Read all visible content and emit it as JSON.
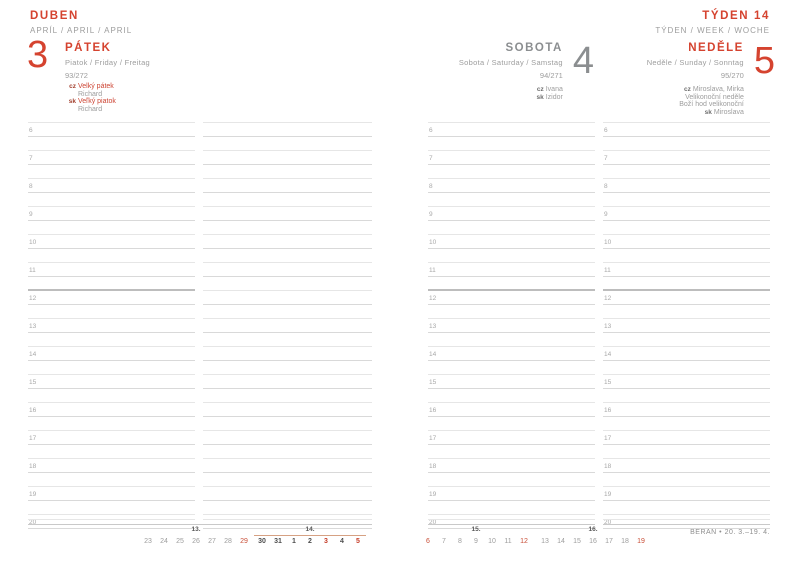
{
  "header": {
    "month": "DUBEN",
    "month_languages": "APRÍL / APRIL / APRIL",
    "week": "TÝDEN 14",
    "week_languages": "TÝDEN / WEEK / WOCHE"
  },
  "days": [
    {
      "number": "3",
      "name": "PÁTEK",
      "languages": "Piatok / Friday / Freitag",
      "day_of_year": "93/272",
      "entries": [
        {
          "prefix": "cz",
          "text": "Velký pátek",
          "type": "holiday"
        },
        {
          "prefix": "",
          "text": "Richard",
          "type": "nameday"
        },
        {
          "prefix": "sk",
          "text": "Veľký piatok",
          "type": "holiday"
        },
        {
          "prefix": "",
          "text": "Richard",
          "type": "nameday"
        }
      ]
    },
    {
      "number": "4",
      "name": "SOBOTA",
      "languages": "Sobota / Saturday / Samstag",
      "day_of_year": "94/271",
      "entries": [
        {
          "prefix": "cz",
          "text": "Ivana",
          "type": "nameday"
        },
        {
          "prefix": "sk",
          "text": "Izidor",
          "type": "nameday"
        }
      ]
    },
    {
      "number": "5",
      "name": "NEDĚLE",
      "languages": "Neděle / Sunday / Sonntag",
      "day_of_year": "95/270",
      "entries": [
        {
          "prefix": "cz",
          "text": "Miroslava, Mirka",
          "type": "nameday"
        },
        {
          "prefix": "",
          "text": "Velikonoční neděle",
          "type": "nameday"
        },
        {
          "prefix": "",
          "text": "Boží hod velikonoční",
          "type": "nameday"
        },
        {
          "prefix": "sk",
          "text": "Miroslava",
          "type": "nameday"
        }
      ]
    }
  ],
  "hours": [
    "6",
    "7",
    "8",
    "9",
    "10",
    "11",
    "12",
    "13",
    "14",
    "15",
    "16",
    "17",
    "18",
    "19",
    "20"
  ],
  "mini_calendar": {
    "weeks": [
      {
        "label": "13.",
        "current": false,
        "days": [
          {
            "n": "23",
            "style": "gray"
          },
          {
            "n": "24",
            "style": "gray"
          },
          {
            "n": "25",
            "style": "gray"
          },
          {
            "n": "26",
            "style": "gray"
          },
          {
            "n": "27",
            "style": "gray"
          },
          {
            "n": "28",
            "style": "gray"
          },
          {
            "n": "29",
            "style": "red"
          }
        ]
      },
      {
        "label": "14.",
        "current": true,
        "days": [
          {
            "n": "30",
            "style": "bold"
          },
          {
            "n": "31",
            "style": "bold"
          },
          {
            "n": "1",
            "style": "bold"
          },
          {
            "n": "2",
            "style": "bold"
          },
          {
            "n": "3",
            "style": "redbold"
          },
          {
            "n": "4",
            "style": "bold"
          },
          {
            "n": "5",
            "style": "redbold"
          }
        ]
      },
      {
        "label": "15.",
        "current": false,
        "days": [
          {
            "n": "6",
            "style": "red"
          },
          {
            "n": "7",
            "style": "gray"
          },
          {
            "n": "8",
            "style": "gray"
          },
          {
            "n": "9",
            "style": "gray"
          },
          {
            "n": "10",
            "style": "gray"
          },
          {
            "n": "11",
            "style": "gray"
          },
          {
            "n": "12",
            "style": "red"
          }
        ]
      },
      {
        "label": "16.",
        "current": false,
        "days": [
          {
            "n": "13",
            "style": "gray"
          },
          {
            "n": "14",
            "style": "gray"
          },
          {
            "n": "15",
            "style": "gray"
          },
          {
            "n": "16",
            "style": "gray"
          },
          {
            "n": "17",
            "style": "gray"
          },
          {
            "n": "18",
            "style": "gray"
          },
          {
            "n": "19",
            "style": "red"
          }
        ]
      }
    ],
    "zodiac": "BERAN • 20. 3.–19. 4."
  },
  "colors": {
    "accent_red": "#d5432f",
    "muted_gray": "#9d9d9d",
    "holiday_red": "#cd4534",
    "current_week_tan": "#d6a183"
  }
}
